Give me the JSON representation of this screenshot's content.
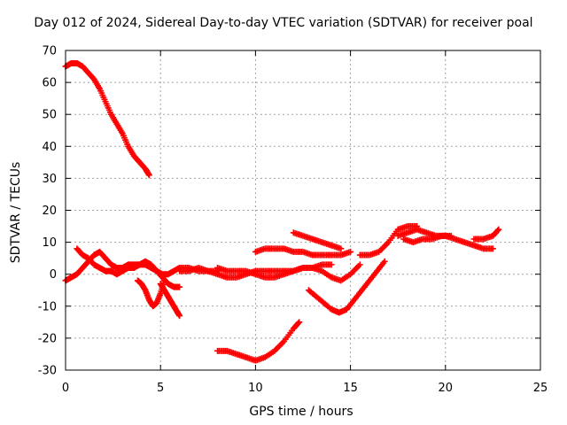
{
  "chart_data": {
    "type": "scatter",
    "title": "Day 012 of 2024, Sidereal Day-to-day VTEC variation (SDTVAR) for receiver poal",
    "xlabel": "GPS time / hours",
    "ylabel": "SDTVAR / TECUs",
    "xlim": [
      0,
      25
    ],
    "ylim": [
      -30,
      70
    ],
    "xticks": [
      "0",
      "5",
      "10",
      "15",
      "20",
      "25"
    ],
    "yticks": [
      "-30",
      "-20",
      "-10",
      "0",
      "10",
      "20",
      "30",
      "40",
      "50",
      "60",
      "70"
    ],
    "grid": true,
    "marker": "+",
    "color": "#ff0000",
    "series": [
      {
        "name": "s1",
        "x": [
          0.0,
          0.3,
          0.6,
          0.9,
          1.2,
          1.5,
          1.8,
          2.1,
          2.4,
          2.7,
          3.0,
          3.3,
          3.6,
          3.9,
          4.2,
          4.4
        ],
        "y": [
          65,
          66,
          66,
          65,
          63,
          61,
          58,
          54,
          50,
          47,
          44,
          40,
          37,
          35,
          33,
          31
        ]
      },
      {
        "name": "s2",
        "x": [
          0.0,
          0.3,
          0.6,
          0.9,
          1.2,
          1.5,
          1.8,
          2.1,
          2.4,
          2.7,
          3.0,
          3.3,
          3.6,
          3.9,
          4.2,
          4.5,
          4.8,
          5.1,
          5.4,
          5.7,
          6.0
        ],
        "y": [
          -2,
          -1,
          0,
          2,
          4,
          6,
          7,
          5,
          3,
          2,
          2,
          3,
          3,
          3,
          4,
          3,
          1,
          -1,
          -3,
          -4,
          -4
        ]
      },
      {
        "name": "s3",
        "x": [
          0.6,
          0.9,
          1.2,
          1.5,
          1.8,
          2.1,
          2.4,
          2.7,
          3.0,
          3.3,
          3.6,
          3.9,
          4.2,
          4.5,
          4.8,
          5.1,
          5.4,
          5.7,
          6.0,
          6.5,
          7.0,
          7.5,
          8.0
        ],
        "y": [
          8,
          6,
          5,
          3,
          2,
          1,
          1,
          0,
          1,
          2,
          2,
          3,
          3,
          2,
          1,
          0,
          0,
          1,
          2,
          2,
          1,
          1,
          1
        ]
      },
      {
        "name": "s4",
        "x": [
          3.8,
          4.0,
          4.2,
          4.4,
          4.6,
          4.8,
          5.0,
          5.2
        ],
        "y": [
          -2,
          -3,
          -5,
          -8,
          -10,
          -9,
          -6,
          -2
        ]
      },
      {
        "name": "s5",
        "x": [
          5.0,
          5.2,
          5.4,
          5.6,
          5.8,
          6.0
        ],
        "y": [
          -3,
          -5,
          -7,
          -9,
          -11,
          -13
        ]
      },
      {
        "name": "s6",
        "x": [
          6.0,
          6.5,
          7.0,
          7.5,
          8.0,
          8.5,
          9.0,
          9.5,
          10.0,
          10.5,
          11.0,
          11.5,
          12.0,
          12.5,
          13.0,
          13.5,
          14.0,
          14.5,
          15.0,
          15.5
        ],
        "y": [
          1,
          1,
          2,
          1,
          0,
          -1,
          -1,
          0,
          1,
          1,
          1,
          1,
          1,
          2,
          2,
          1,
          -1,
          -2,
          0,
          3
        ]
      },
      {
        "name": "s7",
        "x": [
          8.0,
          8.5,
          9.0,
          9.5,
          10.0,
          10.5,
          11.0,
          11.5,
          12.0,
          12.5,
          13.0,
          13.5,
          14.0
        ],
        "y": [
          2,
          1,
          1,
          1,
          0,
          -1,
          -1,
          0,
          1,
          2,
          2,
          3,
          3
        ]
      },
      {
        "name": "s8",
        "x": [
          8.0,
          8.5,
          9.0,
          9.5,
          10.0,
          10.5,
          11.0,
          11.5,
          12.0,
          12.3
        ],
        "y": [
          -24,
          -24,
          -25,
          -26,
          -27,
          -26,
          -24,
          -21,
          -17,
          -15
        ]
      },
      {
        "name": "s9",
        "x": [
          10.0,
          10.5,
          11.0,
          11.5,
          12.0,
          12.5,
          13.0,
          13.5,
          14.0,
          14.5,
          15.0
        ],
        "y": [
          7,
          8,
          8,
          8,
          7,
          7,
          6,
          6,
          6,
          6,
          7
        ]
      },
      {
        "name": "s10",
        "x": [
          12.0,
          12.5,
          13.0,
          13.5,
          14.0,
          14.5
        ],
        "y": [
          13,
          12,
          11,
          10,
          9,
          8
        ]
      },
      {
        "name": "s11",
        "x": [
          12.8,
          13.2,
          13.6,
          14.0,
          14.4,
          14.8,
          15.2,
          15.6,
          16.0,
          16.4,
          16.8
        ],
        "y": [
          -5,
          -7,
          -9,
          -11,
          -12,
          -11,
          -8,
          -5,
          -2,
          1,
          4
        ]
      },
      {
        "name": "s12",
        "x": [
          15.5,
          16.0,
          16.5,
          17.0,
          17.5,
          18.0,
          18.5
        ],
        "y": [
          6,
          6,
          7,
          10,
          14,
          15,
          15
        ]
      },
      {
        "name": "s13",
        "x": [
          17.5,
          18.0,
          18.5,
          19.0,
          19.5,
          20.0,
          20.5,
          21.0,
          21.5,
          22.0,
          22.5
        ],
        "y": [
          12,
          13,
          14,
          13,
          12,
          12,
          11,
          10,
          9,
          8,
          8
        ]
      },
      {
        "name": "s14",
        "x": [
          17.8,
          18.3,
          18.8,
          19.3,
          19.8,
          20.3
        ],
        "y": [
          11,
          10,
          11,
          11,
          12,
          12
        ]
      },
      {
        "name": "s15",
        "x": [
          21.5,
          22.0,
          22.5,
          22.8
        ],
        "y": [
          11,
          11,
          12,
          14
        ]
      }
    ]
  }
}
